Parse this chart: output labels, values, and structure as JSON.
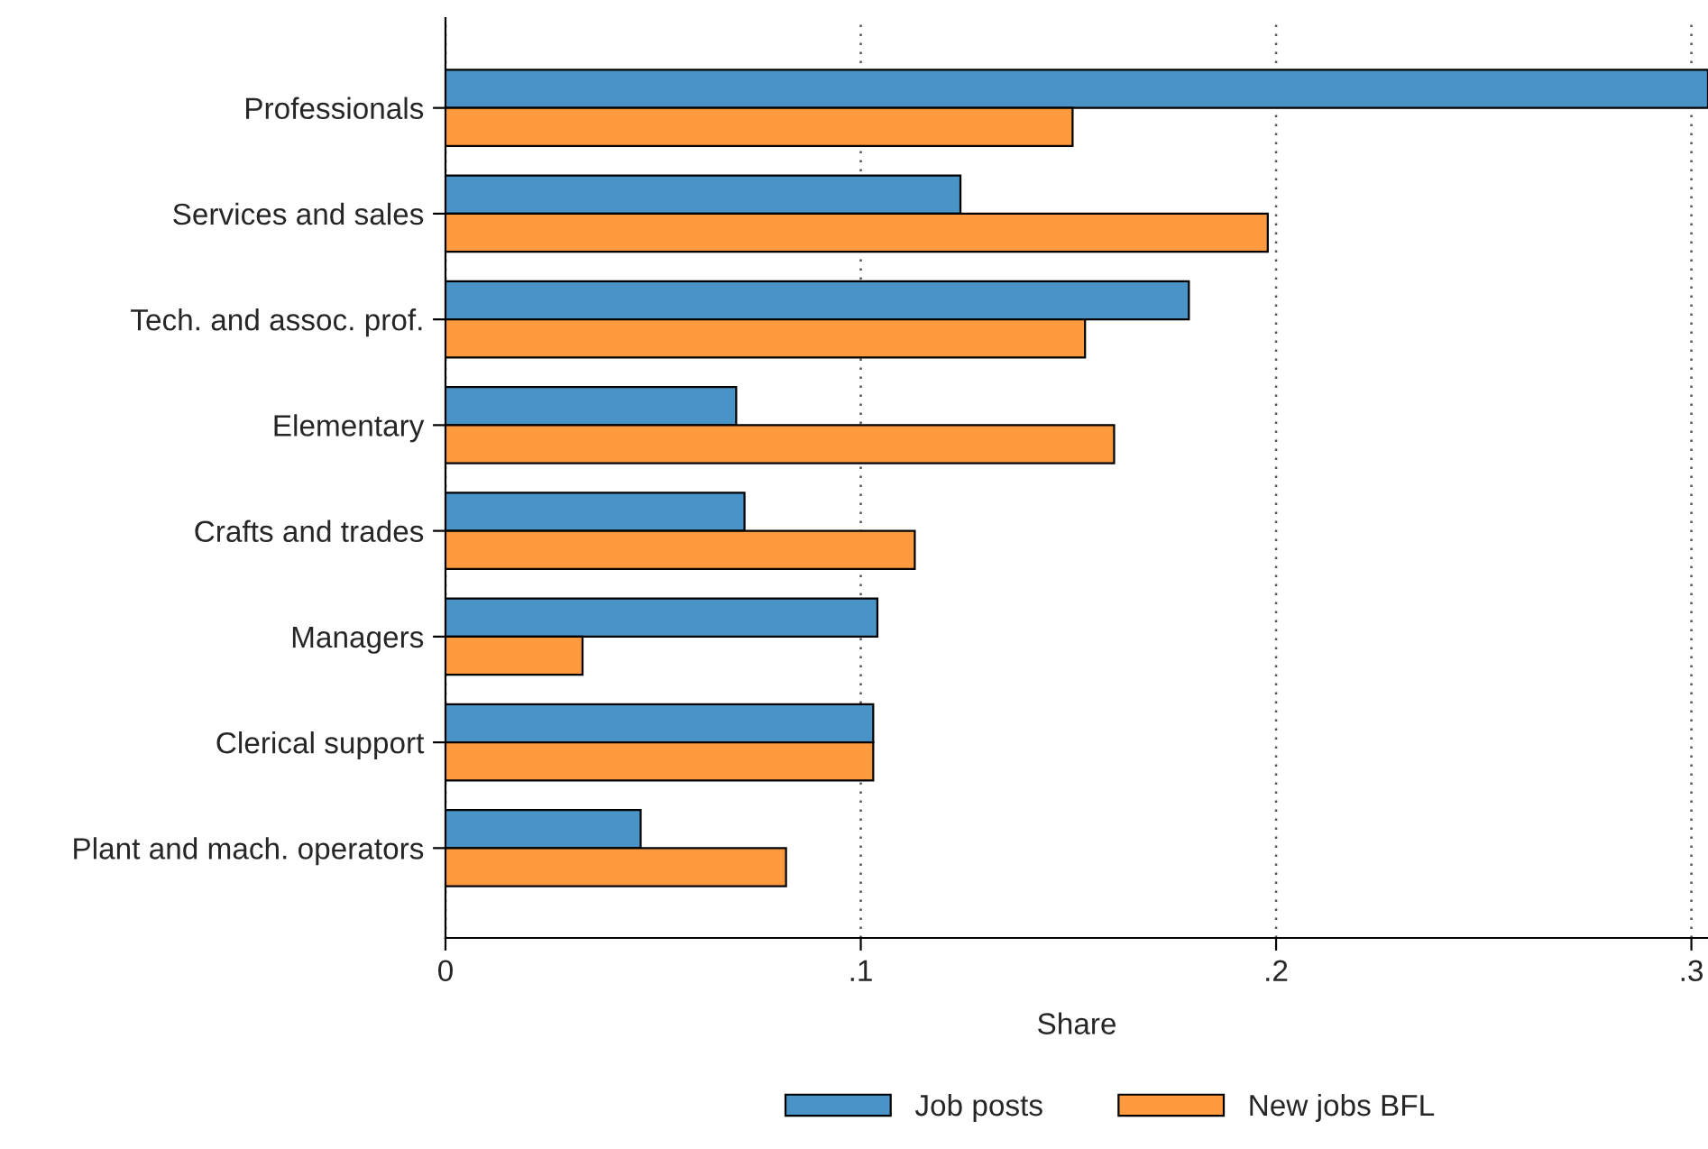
{
  "chart_data": {
    "type": "bar",
    "orientation": "horizontal",
    "xlabel": "Share",
    "categories": [
      "Professionals",
      "Services and sales",
      "Tech. and assoc. prof.",
      "Elementary",
      "Crafts and trades",
      "Managers",
      "Clerical support",
      "Plant and mach. operators"
    ],
    "series": [
      {
        "name": "Job posts",
        "color": "#4a93c6",
        "values": [
          0.304,
          0.124,
          0.179,
          0.07,
          0.072,
          0.104,
          0.103,
          0.047
        ]
      },
      {
        "name": "New jobs BFL",
        "color": "#ff9b3e",
        "values": [
          0.151,
          0.198,
          0.154,
          0.161,
          0.113,
          0.033,
          0.103,
          0.082
        ]
      }
    ],
    "xlim": [
      0,
      0.304
    ],
    "xticks": [
      {
        "value": 0,
        "label": "0"
      },
      {
        "value": 0.1,
        "label": ".1"
      },
      {
        "value": 0.2,
        "label": ".2"
      },
      {
        "value": 0.3,
        "label": ".3"
      }
    ],
    "grid": "x",
    "legend": "bottom"
  }
}
